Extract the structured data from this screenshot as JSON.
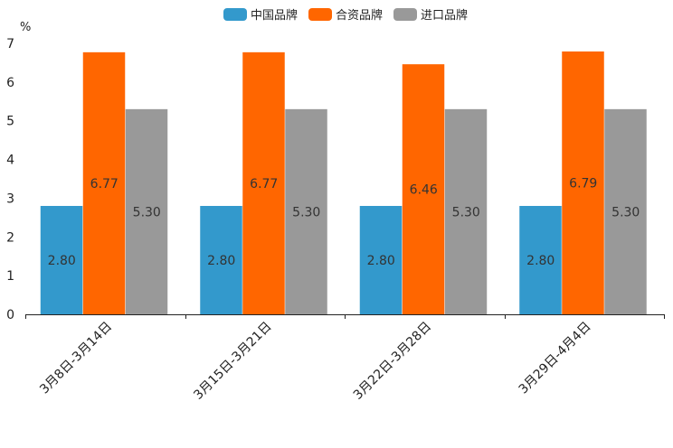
{
  "chart_data": {
    "type": "bar",
    "ylabel": "%",
    "ylim": [
      0,
      7
    ],
    "yticks": [
      0,
      1,
      2,
      3,
      4,
      5,
      6,
      7
    ],
    "categories": [
      "3月8日-3月14日",
      "3月15日-3月21日",
      "3月22日-3月28日",
      "3月29日-4月4日"
    ],
    "series": [
      {
        "name": "中国品牌",
        "color": "#3399cc",
        "values": [
          2.8,
          2.8,
          2.8,
          2.8
        ],
        "labels": [
          "2.80",
          "2.80",
          "2.80",
          "2.80"
        ]
      },
      {
        "name": "合资品牌",
        "color": "#ff6600",
        "values": [
          6.77,
          6.77,
          6.46,
          6.79
        ],
        "labels": [
          "6.77",
          "6.77",
          "6.46",
          "6.79"
        ]
      },
      {
        "name": "进口品牌",
        "color": "#999999",
        "values": [
          5.3,
          5.3,
          5.3,
          5.3
        ],
        "labels": [
          "5.30",
          "5.30",
          "5.30",
          "5.30"
        ]
      }
    ],
    "legend_position": "top-center",
    "grid": false
  }
}
